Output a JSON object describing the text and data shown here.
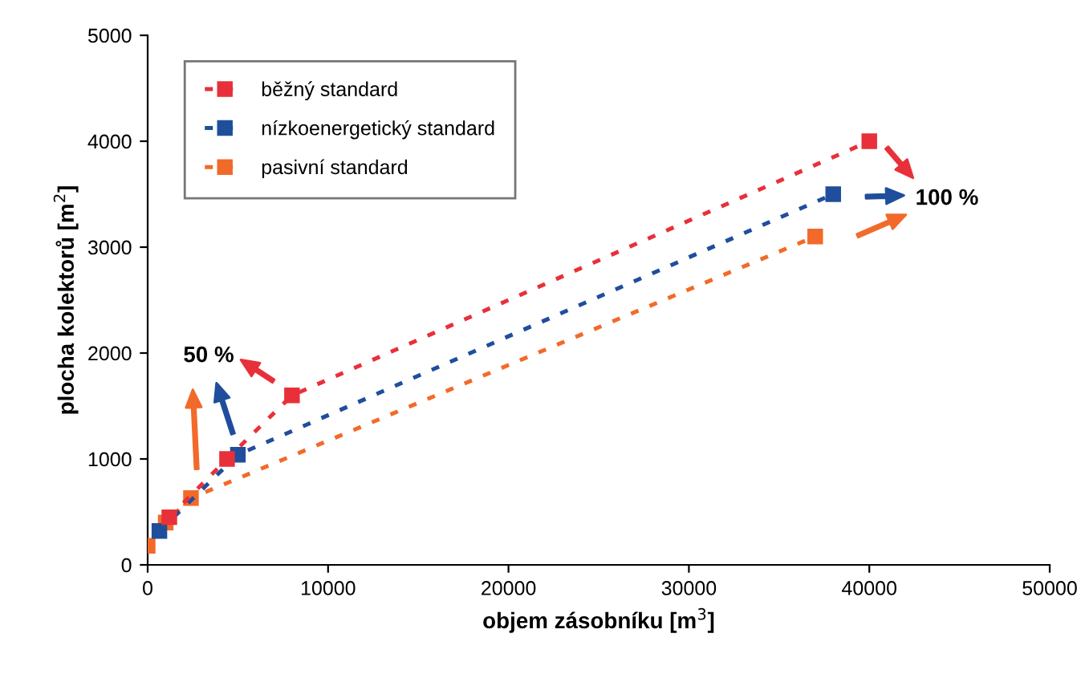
{
  "chart_data": {
    "type": "line",
    "xlabel": "objem zásobníku [m$^{3}$]",
    "ylabel": "plocha kolektorů [m$^{2}$]",
    "xlim": [
      0,
      50000
    ],
    "ylim": [
      0,
      5000
    ],
    "xticks": [
      0,
      10000,
      20000,
      30000,
      40000,
      50000
    ],
    "yticks": [
      0,
      1000,
      2000,
      3000,
      4000,
      5000
    ],
    "grid": false,
    "legend": "top left",
    "marker": "square",
    "line_style": "dotted",
    "series": [
      {
        "name": "běžný standard",
        "color": "#e8303a",
        "x": [
          1200,
          4400,
          8000,
          40000
        ],
        "values": [
          450,
          1000,
          1600,
          4000
        ]
      },
      {
        "name": "nízkoenergetický standard",
        "color": "#1f4e9c",
        "x": [
          650,
          5000,
          38000
        ],
        "values": [
          320,
          1040,
          3500
        ]
      },
      {
        "name": "pasivní standard",
        "color": "#f26a2a",
        "x": [
          0,
          1000,
          2400,
          37000
        ],
        "values": [
          180,
          400,
          630,
          3100
        ]
      }
    ],
    "annotations": [
      "50 %",
      "100 %"
    ]
  }
}
